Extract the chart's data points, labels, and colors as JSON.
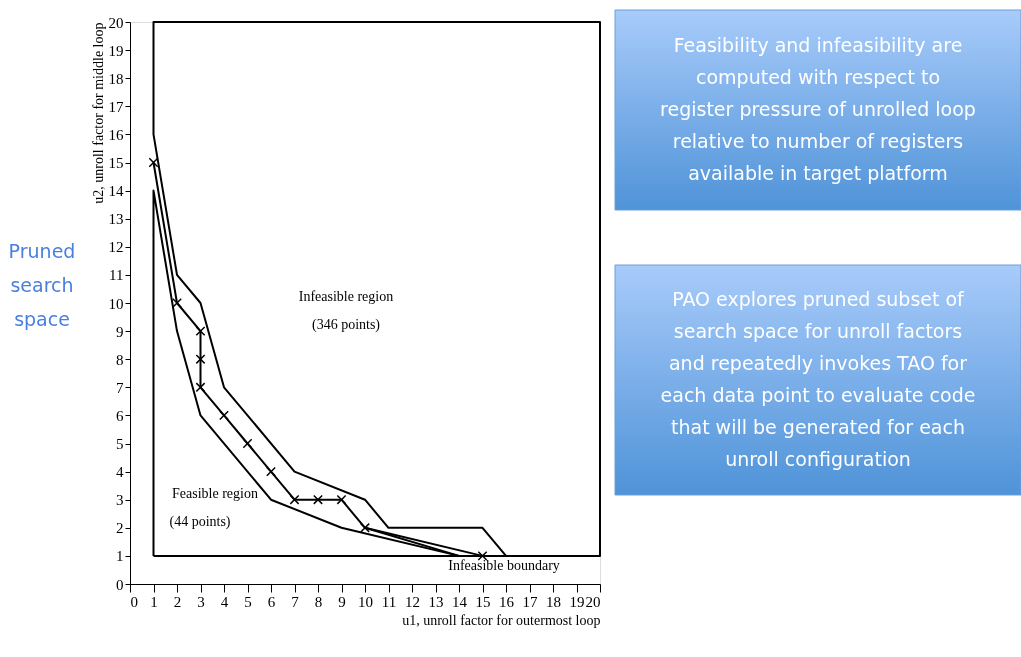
{
  "chart_data": {
    "type": "line",
    "xlabel": "u1, unroll factor for outermost loop",
    "ylabel": "u2, unroll factor for middle loop",
    "xlim": [
      0,
      20
    ],
    "ylim": [
      0,
      20
    ],
    "xticks": [
      0,
      1,
      2,
      3,
      4,
      5,
      6,
      7,
      8,
      9,
      10,
      11,
      12,
      13,
      14,
      15,
      16,
      17,
      18,
      19,
      20
    ],
    "yticks": [
      0,
      1,
      2,
      3,
      4,
      5,
      6,
      7,
      8,
      9,
      10,
      11,
      12,
      13,
      14,
      15,
      16,
      17,
      18,
      19,
      20
    ],
    "grid": false,
    "series": [
      {
        "color": "#000000",
        "marker": "none",
        "x": [
          1,
          20,
          20,
          1,
          1,
          2,
          3,
          4,
          7,
          10,
          11,
          15,
          16
        ],
        "values": [
          1,
          1,
          20,
          20,
          16,
          11,
          10,
          7,
          4,
          3,
          2,
          2,
          1
        ]
      },
      {
        "color": "#000000",
        "marker": "cross",
        "x": [
          1,
          2,
          3,
          3,
          3,
          4,
          5,
          6,
          7,
          8,
          9,
          10,
          15
        ],
        "values": [
          15,
          10,
          9,
          8,
          7,
          6,
          5,
          4,
          3,
          3,
          3,
          2,
          1
        ]
      },
      {
        "color": "#000000",
        "marker": "none",
        "x": [
          1,
          1,
          2,
          3,
          6,
          9,
          14
        ],
        "values": [
          1,
          14,
          9,
          6,
          3,
          2,
          1
        ]
      },
      {
        "color": "#000000",
        "marker": "none",
        "x": [
          10,
          14
        ],
        "values": [
          2,
          1
        ]
      }
    ],
    "annotations": [
      "Pruned\nsearch\nspace",
      "Feasibility and infeasibility are\ncomputed  with respect to\nregister pressure of unrolled loop\nrelative to number of registers\navailable in target platform",
      "PAO explores pruned subset of\nsearch space for unroll factors\nand repeatedly invokes TAO for\neach data point to evaluate code\nthat will be generated for each\nunroll configuration",
      "Infeasible region",
      "(346 points)",
      "Feasible region",
      "(44 points)",
      "Infeasible boundary"
    ]
  }
}
